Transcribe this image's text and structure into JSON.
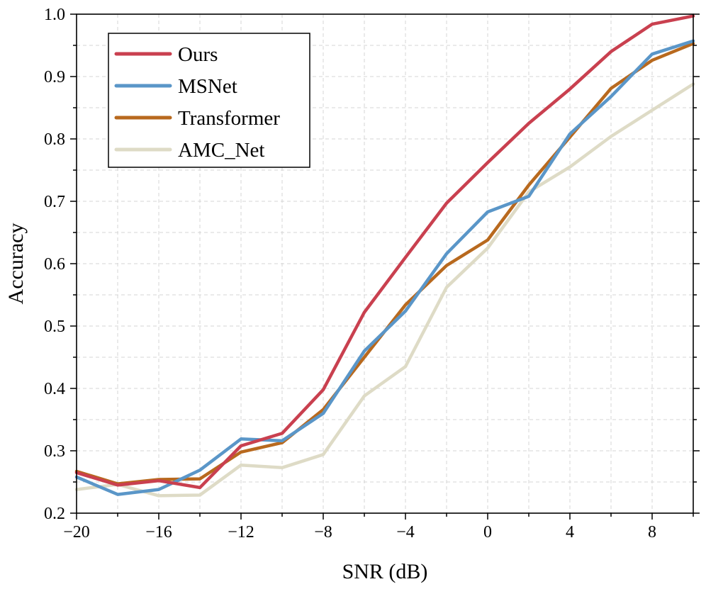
{
  "chart_data": {
    "type": "line",
    "xlabel": "SNR (dB)",
    "ylabel": "Accuracy",
    "xlim": [
      -20,
      10
    ],
    "ylim": [
      0.2,
      1.0
    ],
    "xticks": [
      -20,
      -16,
      -12,
      -8,
      -4,
      0,
      4,
      8
    ],
    "xtick_labels": [
      "−20",
      "−16",
      "−12",
      "−8",
      "−4",
      "0",
      "4",
      "8"
    ],
    "yticks": [
      0.2,
      0.3,
      0.4,
      0.5,
      0.6,
      0.7,
      0.8,
      0.9,
      1.0
    ],
    "ytick_labels": [
      "0.2",
      "0.3",
      "0.4",
      "0.5",
      "0.6",
      "0.7",
      "0.8",
      "0.9",
      "1.0"
    ],
    "grid": true,
    "legend_position": "top-left",
    "x": [
      -20,
      -18,
      -16,
      -14,
      -12,
      -10,
      -8,
      -6,
      -4,
      -2,
      0,
      2,
      4,
      6,
      8,
      10
    ],
    "series": [
      {
        "name": "Ours",
        "color": "#c9404f",
        "values": [
          0.265,
          0.245,
          0.252,
          0.241,
          0.308,
          0.328,
          0.398,
          0.522,
          0.61,
          0.697,
          0.762,
          0.825,
          0.88,
          0.94,
          0.984,
          0.997
        ]
      },
      {
        "name": "MSNet",
        "color": "#5a96c8",
        "values": [
          0.258,
          0.23,
          0.238,
          0.269,
          0.319,
          0.316,
          0.36,
          0.46,
          0.524,
          0.616,
          0.683,
          0.708,
          0.808,
          0.868,
          0.936,
          0.957
        ]
      },
      {
        "name": "Transformer",
        "color": "#b8691e",
        "values": [
          0.267,
          0.247,
          0.254,
          0.255,
          0.298,
          0.313,
          0.366,
          0.45,
          0.534,
          0.597,
          0.638,
          0.726,
          0.803,
          0.881,
          0.926,
          0.953
        ]
      },
      {
        "name": "AMC_Net",
        "color": "#dedbc6",
        "values": [
          0.238,
          0.246,
          0.228,
          0.229,
          0.277,
          0.273,
          0.294,
          0.388,
          0.435,
          0.562,
          0.625,
          0.715,
          0.755,
          0.804,
          0.846,
          0.888
        ]
      }
    ]
  }
}
